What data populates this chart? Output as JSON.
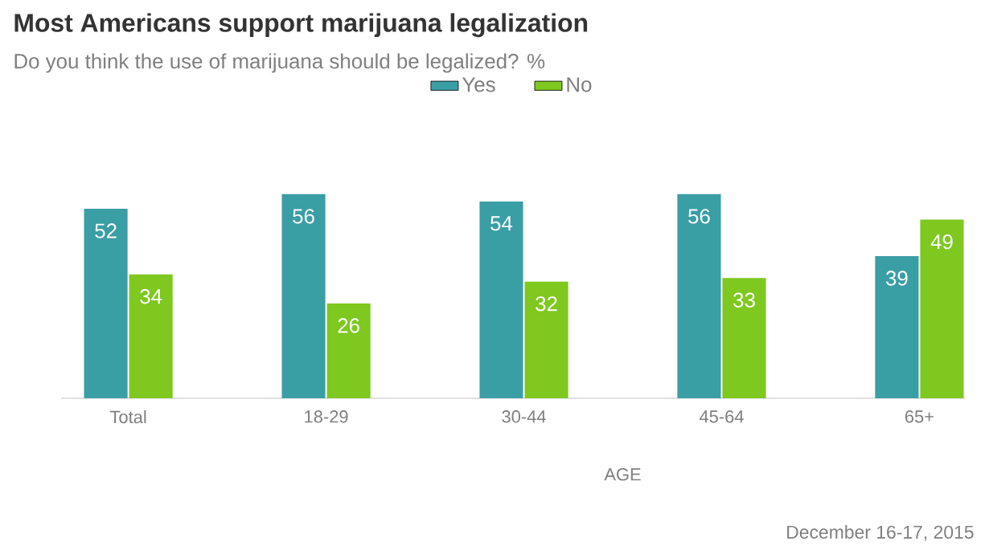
{
  "chart_data": {
    "type": "bar",
    "title": "Most Americans support marijuana legalization",
    "subtitle": "Do you think the use of marijuana should be legalized? %",
    "xlabel": "AGE",
    "categories": [
      "Total",
      "18-29",
      "30-44",
      "45-64",
      "65+"
    ],
    "series": [
      {
        "name": "Yes",
        "color": "#3a9ea5",
        "values": [
          52,
          56,
          54,
          56,
          39
        ]
      },
      {
        "name": "No",
        "color": "#7ec820",
        "values": [
          34,
          26,
          32,
          33,
          49
        ]
      }
    ],
    "data_labels": true,
    "legend": "top",
    "annotations": [
      "December 16-17, 2015"
    ]
  }
}
